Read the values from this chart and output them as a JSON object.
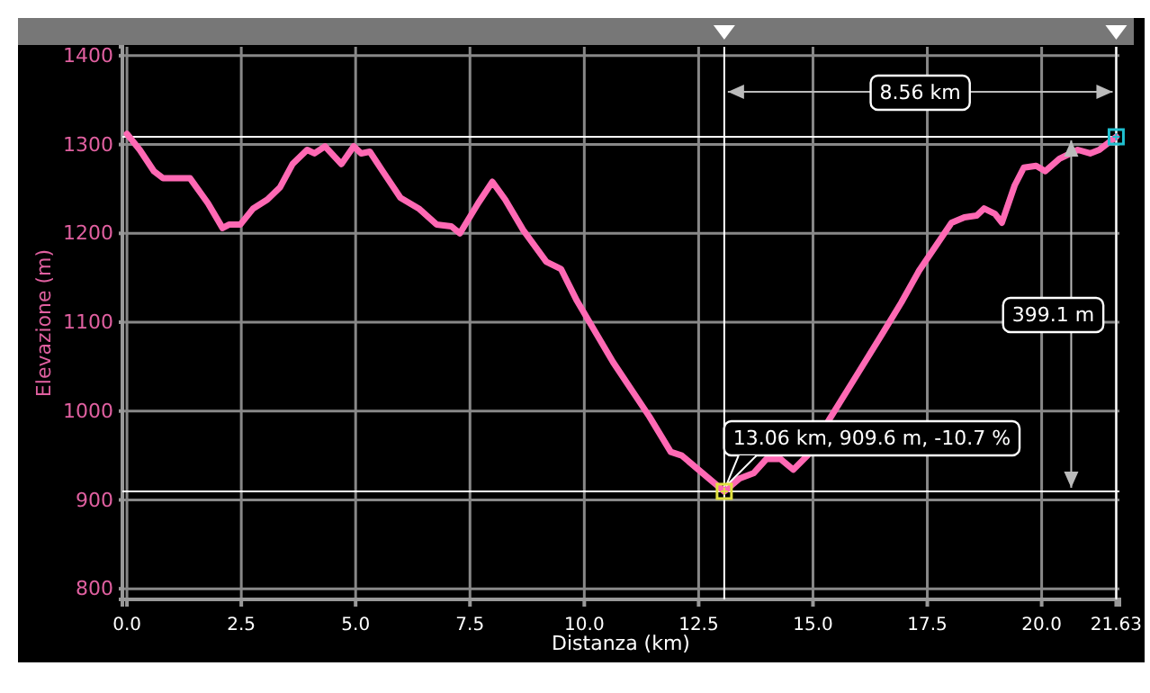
{
  "chart_data": {
    "type": "line",
    "xlabel": "Distanza (km)",
    "ylabel": "Elevazione (m)",
    "xlim": [
      -0.1,
      21.7
    ],
    "ylim": [
      788,
      1410
    ],
    "xticks": [
      {
        "value": 0,
        "label": "0.0"
      },
      {
        "value": 2.5,
        "label": "2.5"
      },
      {
        "value": 5,
        "label": "5.0"
      },
      {
        "value": 7.5,
        "label": "7.5"
      },
      {
        "value": 10,
        "label": "10.0"
      },
      {
        "value": 12.5,
        "label": "12.5"
      },
      {
        "value": 15,
        "label": "15.0"
      },
      {
        "value": 17.5,
        "label": "17.5"
      },
      {
        "value": 20,
        "label": "20.0"
      },
      21.63
    ],
    "yticks": [
      800,
      900,
      1000,
      1100,
      1200,
      1300,
      1400
    ],
    "grid": true,
    "marker": "none",
    "line_style": "solid",
    "series": [
      {
        "color": "#ff69b4",
        "x": [
          0,
          0.28,
          0.59,
          0.79,
          1.38,
          1.77,
          2.09,
          2.24,
          2.48,
          2.76,
          3.07,
          3.35,
          3.62,
          3.94,
          4.1,
          4.33,
          4.69,
          4.96,
          5.12,
          5.31,
          5.59,
          5.98,
          6.38,
          6.77,
          7.09,
          7.28,
          7.68,
          7.99,
          8.27,
          8.66,
          9.17,
          9.49,
          9.84,
          10.63,
          11.42,
          11.89,
          12.13,
          12.68,
          13.06,
          13.39,
          13.7,
          13.98,
          14.29,
          14.57,
          14.88,
          15.35,
          15.94,
          16.54,
          16.93,
          17.32,
          18.03,
          18.31,
          18.58,
          18.74,
          18.98,
          19.13,
          19.41,
          19.61,
          19.88,
          20.08,
          20.39,
          20.79,
          21.06,
          21.26,
          21.63
        ],
        "values": [
          1312,
          1294,
          1270,
          1262,
          1262,
          1234,
          1206,
          1210,
          1210,
          1228,
          1238,
          1252,
          1278,
          1294,
          1290,
          1298,
          1278,
          1298,
          1290,
          1292,
          1270,
          1240,
          1228,
          1210,
          1208,
          1200,
          1234,
          1258,
          1238,
          1204,
          1168,
          1160,
          1124,
          1055,
          994,
          954,
          950,
          926,
          909.6,
          924,
          930,
          946,
          946,
          934,
          950,
          990,
          1039,
          1089,
          1122,
          1158,
          1212,
          1218,
          1220,
          1228,
          1222,
          1212,
          1254,
          1274,
          1276,
          1270,
          1284,
          1294,
          1290,
          1294,
          1308.7
        ]
      }
    ],
    "ref_lines": [
      {
        "axis": "x",
        "value": 13.06,
        "color": "#ffffff"
      },
      {
        "axis": "x",
        "value": 21.63,
        "color": "#ffffff"
      },
      {
        "axis": "y",
        "value": 909.6,
        "color": "#ffffff"
      },
      {
        "axis": "y",
        "value": 1308.7,
        "color": "#ffffff"
      }
    ],
    "annotations": [
      {
        "text": "13.06 km, 909.6 m, -10.7 %",
        "x": 13.06,
        "y": 909.6
      },
      "8.56 km",
      "399.1 m"
    ]
  }
}
